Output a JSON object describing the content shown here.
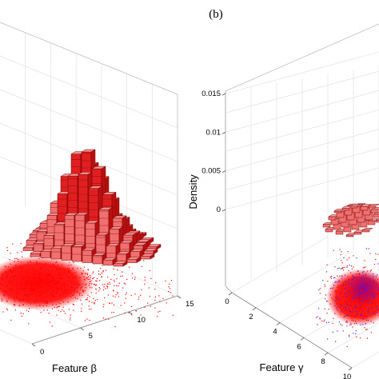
{
  "panel_label": "(b)",
  "colors": {
    "bar_fill": "#e02020",
    "bar_fill_light": "#f07070",
    "bar_edge": "#7a0000",
    "scatter_red": "#ff0000",
    "scatter_blue": "#2a2aff",
    "grid": "#dcdcdc",
    "axis": "#555555"
  },
  "chart_data": [
    {
      "type": "3d-histogram-scatter",
      "side": "left",
      "title": "",
      "xlabel": "",
      "ylabel": "Feature β",
      "zlabel": "",
      "y_ticks": [
        0,
        5,
        10,
        15
      ],
      "y_ticklabels": [
        "0",
        "5",
        "10",
        "15"
      ],
      "z_range": [
        0,
        0.015
      ],
      "histogram_peak_density": 0.0085,
      "series": [
        {
          "values": [
            0.00015,
            0.0006,
            0.0017,
            0.0036,
            0.0061,
            0.0082,
            0.0085,
            0.0071,
            0.0049,
            0.0029,
            0.0015,
            0.0007,
            0.0003,
            0.00012
          ]
        }
      ],
      "grid": true
    },
    {
      "type": "3d-histogram-scatter",
      "side": "right",
      "title": "",
      "xlabel": "Feature γ",
      "ylabel": "",
      "zlabel": "Density",
      "x_ticks": [
        0,
        2,
        4,
        6,
        8,
        10
      ],
      "x_ticklabels": [
        "0",
        "2",
        "4",
        "6",
        "8",
        "10"
      ],
      "z_ticks": [
        0,
        0.005,
        0.01,
        0.015
      ],
      "z_ticklabels": [
        "0",
        "0.005",
        "0.01",
        "0.015"
      ],
      "z_range": [
        0,
        0.015
      ],
      "series": [
        {
          "values": [
            0.0004,
            0.0009,
            0.0016,
            0.0021,
            0.0018,
            0.0011,
            0.0005
          ]
        }
      ],
      "grid": true
    }
  ]
}
